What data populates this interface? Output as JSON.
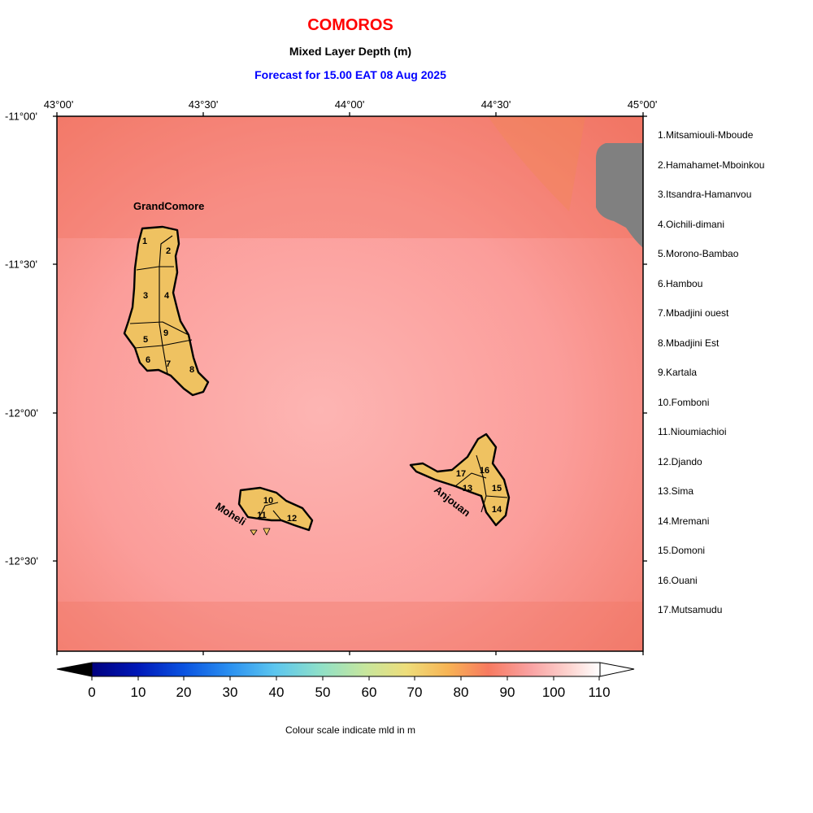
{
  "header": {
    "country": "COMOROS",
    "variable": "Mixed Layer Depth (m)",
    "forecast": "Forecast for  15.00 EAT 08 Aug 2025"
  },
  "axes": {
    "lon_labels": [
      "43°00'",
      "43°30'",
      "44°00'",
      "44°30'",
      "45°00'"
    ],
    "lat_labels": [
      "-11°00'",
      "-11°30'",
      "-12°00'",
      "-12°30'"
    ]
  },
  "islands": [
    {
      "name": "GrandComore",
      "label": "GrandComore"
    },
    {
      "name": "Moheli",
      "label": "Moheli"
    },
    {
      "name": "Anjouan",
      "label": "Anjouan"
    }
  ],
  "region_numbers": [
    "1",
    "2",
    "3",
    "4",
    "5",
    "6",
    "7",
    "8",
    "9",
    "10",
    "11",
    "12",
    "13",
    "14",
    "15",
    "16",
    "17"
  ],
  "legend": [
    "1.Mitsamiouli-Mboude",
    "2.Hamahamet-Mboinkou",
    "3.Itsandra-Hamanvou",
    "4.Oichili-dimani",
    "5.Morono-Bambao",
    "6.Hambou",
    "7.Mbadjini ouest",
    "8.Mbadjini Est",
    "9.Kartala",
    "10.Fomboni",
    "11.Nioumiachioi",
    "12.Djando",
    "13.Sima",
    "14.Mremani",
    "15.Domoni",
    "16.Ouani",
    "17.Mutsamudu"
  ],
  "colorbar": {
    "ticks": [
      "0",
      "10",
      "20",
      "30",
      "40",
      "50",
      "60",
      "70",
      "80",
      "90",
      "100",
      "110"
    ],
    "caption": "Colour scale indicate mld in m",
    "colors": {
      "sea": "#f9a2a0",
      "land": "#efc261",
      "nodata": "#808080"
    }
  }
}
